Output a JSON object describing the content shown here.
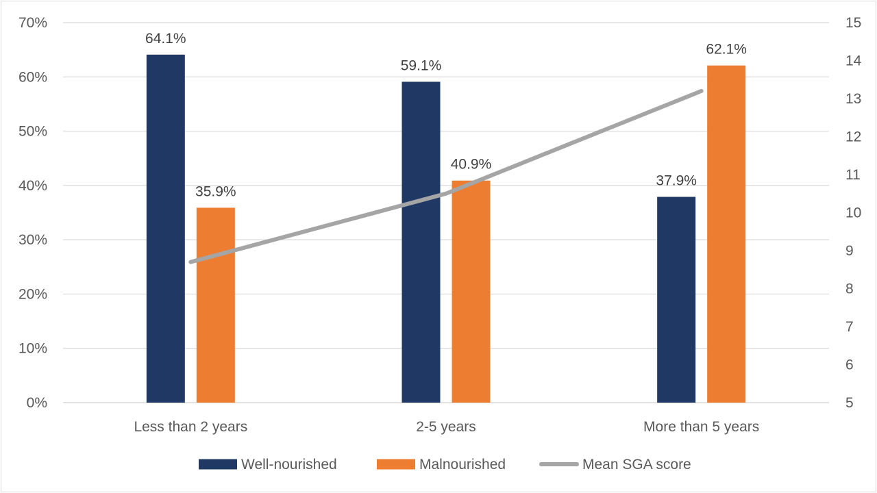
{
  "chart_data": {
    "type": "bar",
    "categories": [
      "Less than 2 years",
      "2-5 years",
      "More than 5 years"
    ],
    "series": [
      {
        "name": "Well-nourished",
        "type": "bar",
        "axis": "left",
        "color": "#1f3864",
        "values": [
          64.1,
          59.1,
          37.9
        ],
        "labels": [
          "64.1%",
          "59.1%",
          "37.9%"
        ]
      },
      {
        "name": "Malnourished",
        "type": "bar",
        "axis": "left",
        "color": "#ed7d31",
        "values": [
          35.9,
          40.9,
          62.1
        ],
        "labels": [
          "35.9%",
          "40.9%",
          "62.1%"
        ]
      },
      {
        "name": "Mean SGA score",
        "type": "line",
        "axis": "right",
        "color": "#a5a5a5",
        "values": [
          8.7,
          10.5,
          13.2
        ]
      }
    ],
    "y_left": {
      "min": 0,
      "max": 70,
      "ticks": [
        0,
        10,
        20,
        30,
        40,
        50,
        60,
        70
      ],
      "tick_labels": [
        "0%",
        "10%",
        "20%",
        "30%",
        "40%",
        "50%",
        "60%",
        "70%"
      ]
    },
    "y_right": {
      "min": 5,
      "max": 15,
      "ticks": [
        5,
        6,
        7,
        8,
        9,
        10,
        11,
        12,
        13,
        14,
        15
      ],
      "tick_labels": [
        "5",
        "6",
        "7",
        "8",
        "9",
        "10",
        "11",
        "12",
        "13",
        "14",
        "15"
      ]
    },
    "title": "",
    "xlabel": "",
    "ylabel": "",
    "grid": true,
    "legend": "bottom"
  }
}
